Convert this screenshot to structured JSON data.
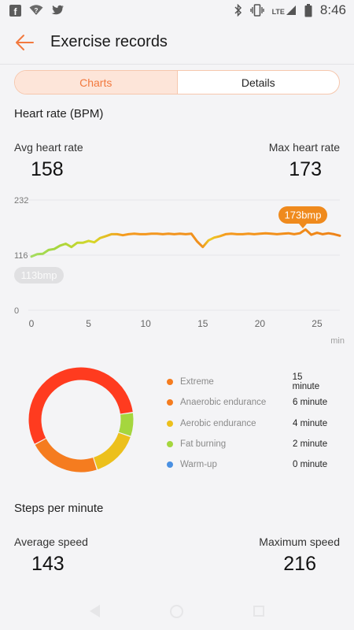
{
  "status": {
    "time": "8:46",
    "network": "LTE"
  },
  "header": {
    "title": "Exercise records"
  },
  "tabs": [
    {
      "label": "Charts",
      "active": true
    },
    {
      "label": "Details",
      "active": false
    }
  ],
  "heart_rate": {
    "title": "Heart rate (BPM)",
    "avg_label": "Avg heart rate",
    "avg_value": "158",
    "max_label": "Max heart rate",
    "max_value": "173",
    "min_bubble": "113bmp",
    "max_bubble": "173bmp"
  },
  "chart_data": {
    "type": "line",
    "series": [
      {
        "x": [
          0,
          0.5,
          1,
          1.5,
          2,
          2.5,
          3,
          3.5,
          4,
          4.5,
          5,
          5.5,
          6,
          6.5,
          7,
          7.5,
          8,
          8.5,
          9,
          9.5,
          10,
          10.5,
          11,
          11.5,
          12,
          12.5,
          13,
          13.5,
          14,
          14.5,
          15,
          15.5,
          16,
          16.5,
          17,
          17.5,
          18,
          18.5,
          19,
          19.5,
          20,
          20.5,
          21,
          21.5,
          22,
          22.5,
          23,
          23.5,
          24,
          24.5,
          25,
          25.5,
          26,
          26.5,
          27
        ],
        "values": [
          113,
          118,
          119,
          127,
          129,
          136,
          140,
          133,
          142,
          142,
          146,
          143,
          152,
          156,
          160,
          160,
          158,
          160,
          161,
          160,
          160,
          161,
          161,
          160,
          161,
          160,
          161,
          160,
          161,
          145,
          133,
          147,
          153,
          156,
          160,
          161,
          160,
          160,
          161,
          160,
          161,
          162,
          161,
          160,
          161,
          162,
          160,
          162,
          170,
          159,
          163,
          160,
          162,
          160,
          157
        ]
      }
    ],
    "xlabel": "min",
    "ylabel": "",
    "x_ticks": [
      "0",
      "5",
      "10",
      "15",
      "20",
      "25"
    ],
    "x_tick_values": [
      0,
      5,
      10,
      15,
      20,
      25
    ],
    "y_ticks": [
      "232",
      "116",
      "0"
    ],
    "y_tick_values": [
      232,
      116,
      0
    ],
    "xlim": [
      0,
      27
    ],
    "ylim": [
      0,
      232
    ],
    "grid": true
  },
  "zones": [
    {
      "name": "Extreme",
      "value": "15 minute",
      "minutes": 15,
      "color": "#ff3b1f"
    },
    {
      "name": "Anaerobic endurance",
      "value": "6 minute",
      "minutes": 6,
      "color": "#f57c1f"
    },
    {
      "name": "Aerobic endurance",
      "value": "4 minute",
      "minutes": 4,
      "color": "#ecc01c"
    },
    {
      "name": "Fat burning",
      "value": "2 minute",
      "minutes": 2,
      "color": "#a5d63e"
    },
    {
      "name": "Warm-up",
      "value": "0 minute",
      "minutes": 0,
      "color": "#4a90e2"
    }
  ],
  "steps": {
    "title": "Steps per minute",
    "avg_label": "Average speed",
    "avg_value": "143",
    "max_label": "Maximum speed",
    "max_value": "216"
  },
  "colors": {
    "accent": "#f2793e",
    "background": "#f4f4f6"
  }
}
